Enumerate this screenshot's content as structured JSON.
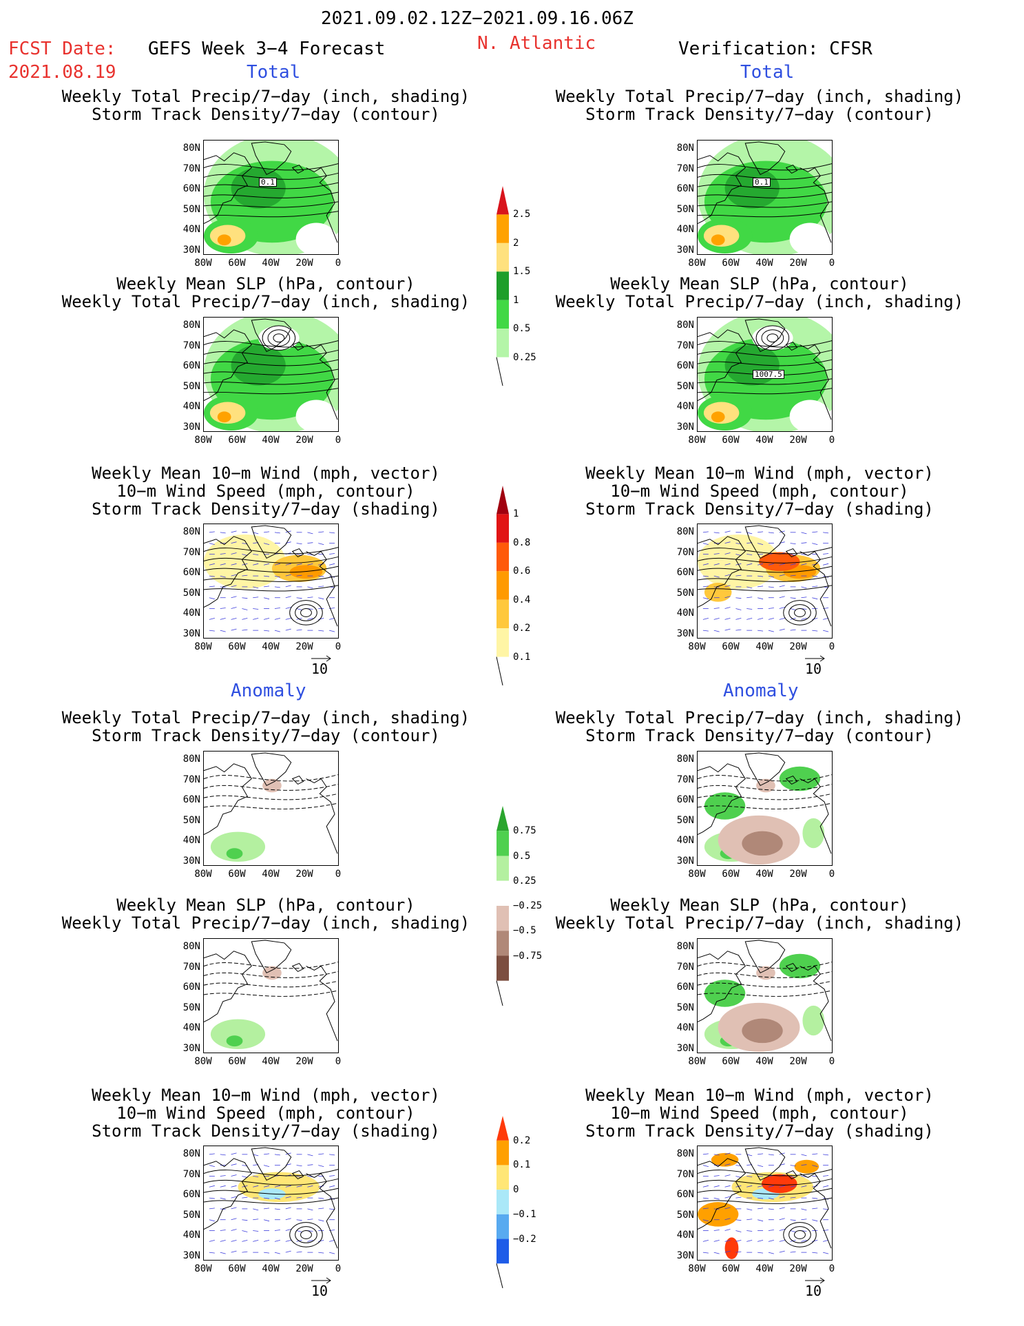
{
  "header": {
    "period": "2021.09.02.12Z−2021.09.16.06Z",
    "fcst_label": "FCST Date:",
    "fcst_date": "2021.08.19",
    "left_title": "GEFS Week 3−4 Forecast",
    "region": "N. Atlantic",
    "right_title": "Verification: CFSR"
  },
  "sections": {
    "total_left": "Total",
    "total_right": "Total",
    "anomaly_left": "Anomaly",
    "anomaly_right": "Anomaly"
  },
  "panel_titles": {
    "precip_track": [
      "Weekly Total Precip/7−day (inch, shading)",
      "Storm Track Density/7−day (contour)"
    ],
    "slp_precip": [
      "Weekly Mean SLP (hPa, contour)",
      "Weekly Total Precip/7−day (inch, shading)"
    ],
    "wind_track": [
      "Weekly Mean 10−m Wind (mph, vector)",
      "10−m Wind Speed (mph, contour)",
      "Storm Track Density/7−day (shading)"
    ]
  },
  "axes": {
    "lat_ticks": [
      "80N",
      "70N",
      "60N",
      "50N",
      "40N",
      "30N"
    ],
    "lon_ticks": [
      "80W",
      "60W",
      "40W",
      "20W",
      "0"
    ]
  },
  "map_labels": {
    "l1": "0.1",
    "r1": "0.1",
    "r2": "1007.5"
  },
  "vector_ref": "10",
  "colorbars": {
    "precip_total": {
      "labels": [
        "2.5",
        "2",
        "1.5",
        "1",
        "0.5",
        "0.25"
      ],
      "colors": [
        "#d8141c",
        "#ffa200",
        "#ffe17e",
        "#1e9e2a",
        "#41d845",
        "#b4f5a8"
      ]
    },
    "track_total": {
      "labels": [
        "1",
        "0.8",
        "0.6",
        "0.4",
        "0.2",
        "0.1"
      ],
      "colors": [
        "#a0000f",
        "#e11414",
        "#ff5a0a",
        "#ff9a00",
        "#ffc83c",
        "#fff5a5"
      ]
    },
    "precip_anom": {
      "labels": [
        "0.75",
        "0.5",
        "0.25",
        "−0.25",
        "−0.5",
        "−0.75"
      ],
      "colors": [
        "#2aa52e",
        "#4fd04f",
        "#b4f0a0",
        "#ffffff",
        "#e0c0b4",
        "#b08878",
        "#7c4e40"
      ]
    },
    "track_anom": {
      "labels": [
        "0.2",
        "0.1",
        "0",
        "−0.1",
        "−0.2"
      ],
      "colors": [
        "#ff3a0a",
        "#ffa000",
        "#ffe676",
        "#aae8f8",
        "#58aaf0",
        "#1e5ce8"
      ]
    }
  }
}
